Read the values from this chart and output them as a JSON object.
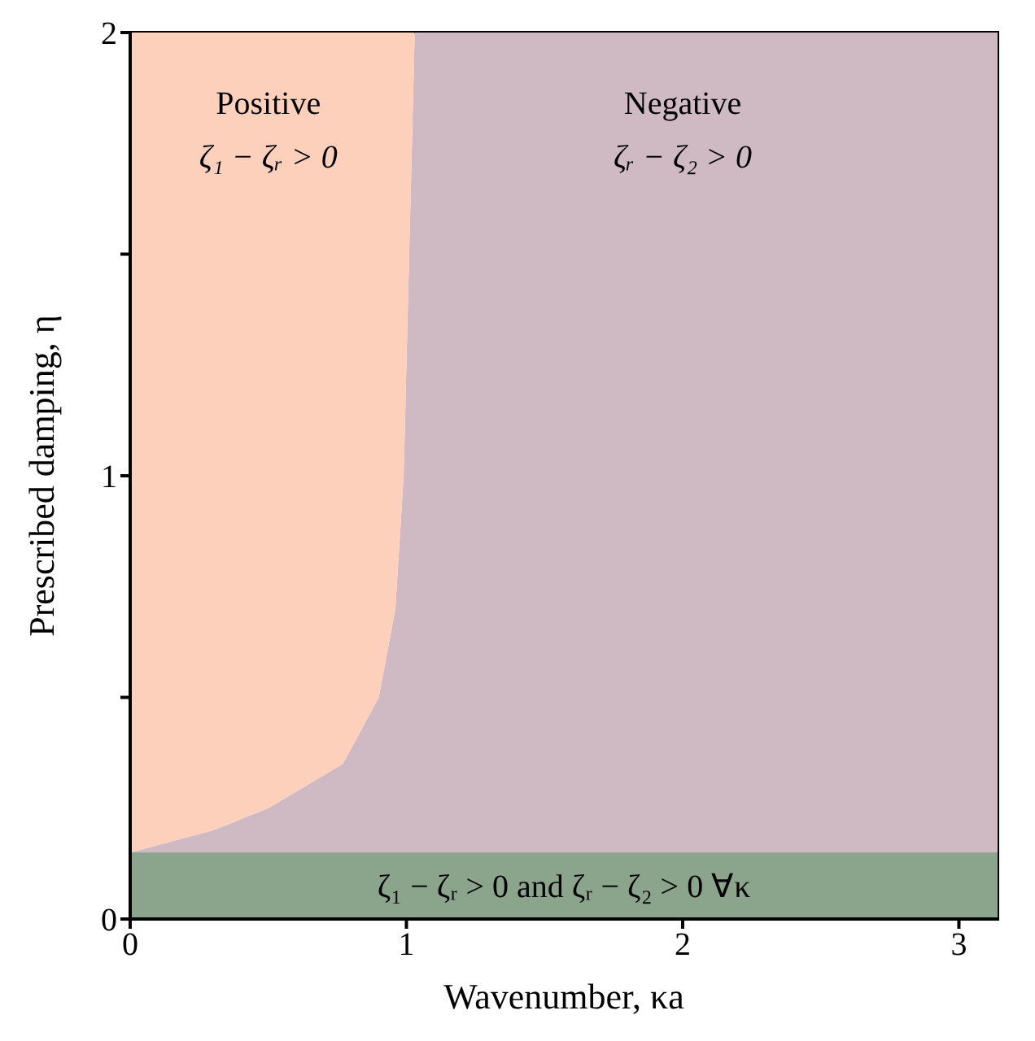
{
  "chart_data": {
    "type": "area",
    "stacked": true,
    "xlabel": "Wavenumber, κa",
    "ylabel": "Prescribed damping, η",
    "x": [
      0,
      0.3,
      0.5,
      0.77,
      0.9,
      0.96,
      0.99,
      1.01,
      1.03,
      3.14
    ],
    "series": [
      {
        "color": "#cfbac3",
        "values": [
          0.15,
          0.2,
          0.25,
          0.35,
          0.5,
          0.7,
          1,
          1.5,
          2,
          2
        ]
      },
      {
        "color": "#fdd0bc",
        "values": [
          1.85,
          1.8,
          1.75,
          1.65,
          1.5,
          1.3,
          1,
          0.5,
          0,
          0
        ]
      }
    ],
    "xlim": [
      0,
      3.14
    ],
    "xticks": [
      0,
      1,
      2,
      3
    ],
    "ylim": [
      0,
      2
    ],
    "yticks": [
      0,
      {
        "value": 0.5,
        "label": null
      },
      1,
      {
        "value": 1.5,
        "label": null
      },
      2
    ],
    "bands": [
      {
        "axis": "y",
        "from": 0,
        "to": 0.15,
        "color": "#8aa58c",
        "label": "ζ₁ − ζᵣ > 0  and  ζᵣ − ζ₂ > 0  ∀κ"
      }
    ],
    "annotations": [
      "Positive",
      "ζ₁ − ζᵣ > 0",
      "Negative",
      "ζᵣ − ζ₂ > 0"
    ]
  }
}
